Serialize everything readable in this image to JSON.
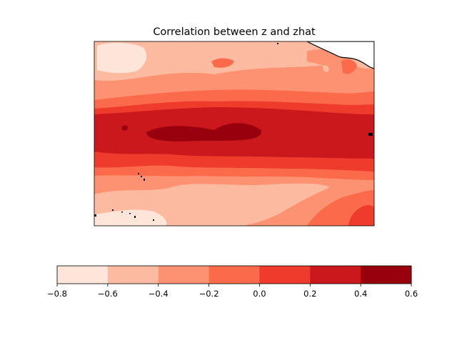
{
  "chart_data": {
    "type": "heatmap",
    "subtype": "filled-contour-map",
    "title": "Correlation between z and zhat",
    "colormap": "Reds",
    "levels": [
      -0.8,
      -0.6,
      -0.4,
      -0.2,
      0.0,
      0.2,
      0.4,
      0.6
    ],
    "level_colors": [
      "#fee5d9",
      "#fcbba1",
      "#fc9272",
      "#fb6a4a",
      "#ef3b2c",
      "#cb181d",
      "#99000d"
    ],
    "colorbar": {
      "orientation": "horizontal",
      "ticks": [
        -0.8,
        -0.6,
        -0.4,
        -0.2,
        0.0,
        0.2,
        0.4,
        0.6
      ],
      "tick_labels": [
        "−0.8",
        "−0.6",
        "−0.4",
        "−0.2",
        "0.0",
        "0.2",
        "0.4",
        "0.6"
      ]
    },
    "bands_top_to_bottom": [
      {
        "range": [
          -0.8,
          -0.6
        ]
      },
      {
        "range": [
          -0.6,
          -0.4
        ]
      },
      {
        "range": [
          -0.4,
          -0.2
        ]
      },
      {
        "range": [
          -0.2,
          0.0
        ]
      },
      {
        "range": [
          0.0,
          0.2
        ]
      },
      {
        "range": [
          0.2,
          0.4
        ]
      },
      {
        "range": [
          0.4,
          0.6
        ]
      },
      {
        "range": [
          0.2,
          0.4
        ]
      },
      {
        "range": [
          0.0,
          0.2
        ]
      },
      {
        "range": [
          -0.2,
          0.0
        ]
      },
      {
        "range": [
          -0.4,
          -0.2
        ]
      },
      {
        "range": [
          -0.6,
          -0.4
        ]
      },
      {
        "range": [
          -0.8,
          -0.6
        ]
      }
    ],
    "map_features": {
      "coastlines": true,
      "land_color": "#ffffff"
    },
    "grid": false
  }
}
